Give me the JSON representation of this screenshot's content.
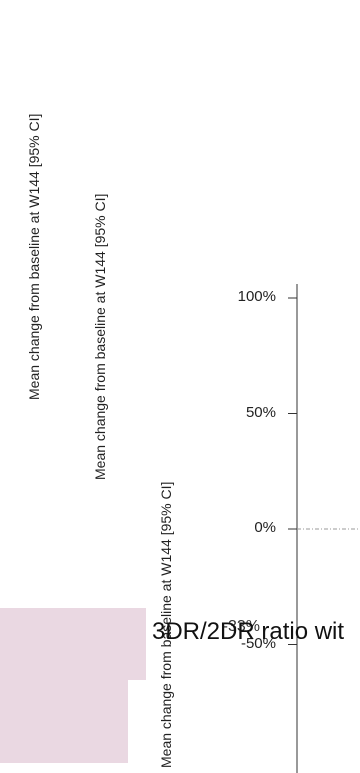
{
  "chart_data": {
    "type": "line",
    "ylabel": "Mean change from baseline at W144 [95% CI]",
    "ylabels_repeated": [
      "Mean change from baseline at W144 [95% CI]",
      "Mean change from baseline at W144 [95% CI]",
      "Mean change from baseline at W144 [95% CI]"
    ],
    "y_ticks": [
      "100%",
      "50%",
      "0%",
      "-50%"
    ],
    "y_tick_values": [
      100,
      50,
      0,
      -50
    ],
    "overlapped_tick_label": "-33%",
    "ylim": [
      -55,
      105
    ],
    "reference_line": 0,
    "series": []
  },
  "overlay": {
    "banner_text": "3DR/2DR ratio wit",
    "panel_color": "#ead8e2"
  }
}
